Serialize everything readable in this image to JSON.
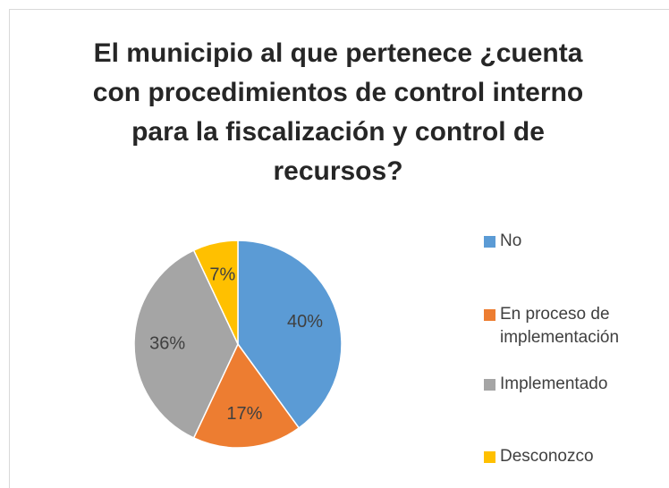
{
  "chart_data": {
    "type": "pie",
    "title": "El municipio al que pertenece ¿cuenta con procedimientos de control interno para la fiscalización y control de recursos?",
    "categories": [
      "No",
      "En proceso de implementación",
      "Implementado",
      "Desconozco"
    ],
    "values": [
      40,
      17,
      36,
      7
    ],
    "value_labels": [
      "40%",
      "17%",
      "36%",
      "7%"
    ],
    "colors": [
      "#5b9bd5",
      "#ed7d31",
      "#a5a5a5",
      "#ffc000"
    ],
    "legend": "right"
  }
}
